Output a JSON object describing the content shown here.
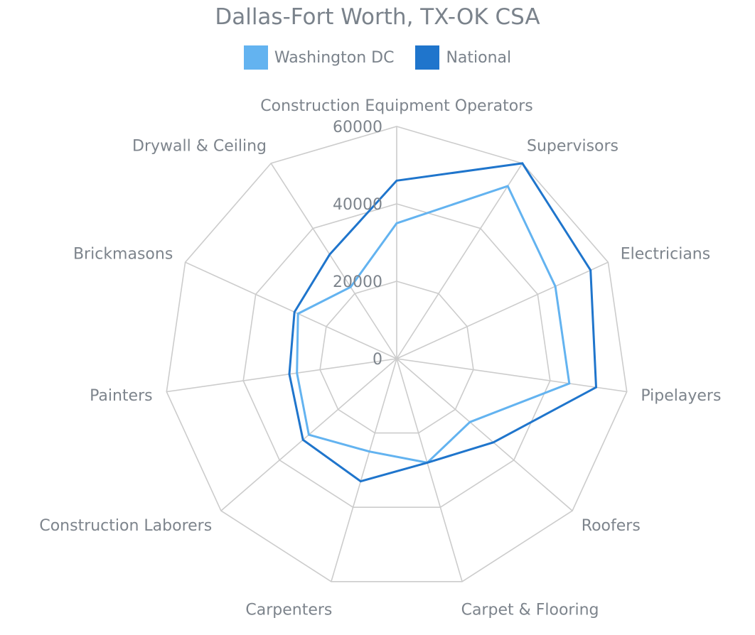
{
  "colors": {
    "washington_dc": "#63b3f0",
    "national": "#1f75cc",
    "grid": "#cccccc",
    "text": "#7d848c"
  },
  "chart_data": {
    "type": "radar",
    "title": "Dallas-Fort Worth, TX-OK CSA",
    "legend_position": "top",
    "grid": true,
    "categories": [
      "Construction Equipment Operators",
      "Supervisors",
      "Electricians",
      "Pipelayers",
      "Roofers",
      "Carpet & Flooring",
      "Carpenters",
      "Construction Laborers",
      "Painters",
      "Brickmasons",
      "Drywall & Ceiling"
    ],
    "rticks": [
      "0",
      "20000",
      "40000",
      "60000"
    ],
    "rlim": [
      0,
      60000
    ],
    "series": [
      {
        "name": "Washington DC",
        "color": "#63b3f0",
        "values": [
          35000,
          53000,
          45000,
          45000,
          25000,
          28000,
          25000,
          30000,
          26000,
          28000,
          22000
        ]
      },
      {
        "name": "National",
        "color": "#1f75cc",
        "values": [
          46000,
          60000,
          55000,
          52000,
          33000,
          28000,
          33000,
          32000,
          28000,
          29000,
          32000
        ]
      }
    ]
  }
}
